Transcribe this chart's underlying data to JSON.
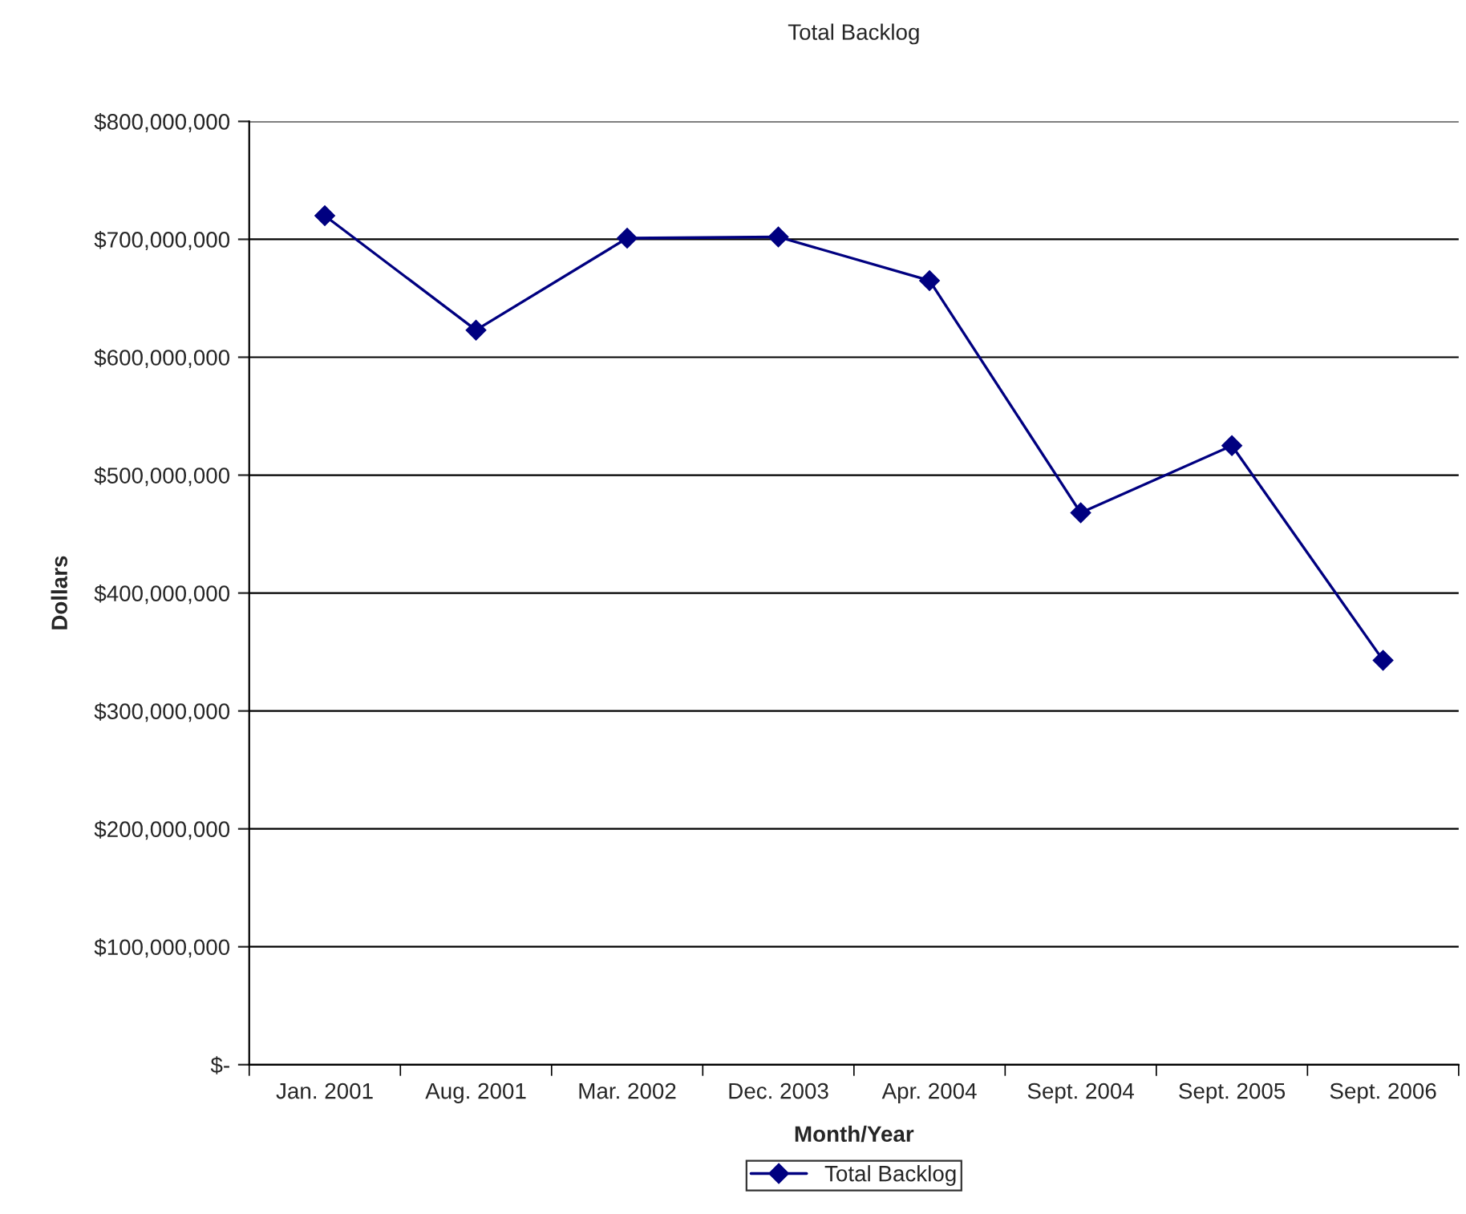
{
  "chart_data": {
    "type": "line",
    "title": "Total Backlog",
    "xlabel": "Month/Year",
    "ylabel": "Dollars",
    "categories": [
      "Jan. 2001",
      "Aug. 2001",
      "Mar. 2002",
      "Dec. 2003",
      "Apr. 2004",
      "Sept. 2004",
      "Sept. 2005",
      "Sept. 2006"
    ],
    "series": [
      {
        "name": "Total Backlog",
        "color": "#000080",
        "values": [
          720000000,
          623000000,
          701000000,
          702000000,
          665000000,
          468000000,
          525000000,
          343000000
        ]
      }
    ],
    "ylim": [
      0,
      800000000
    ],
    "yticks": [
      {
        "value": 0,
        "label": "$-"
      },
      {
        "value": 100000000,
        "label": "$100,000,000"
      },
      {
        "value": 200000000,
        "label": "$200,000,000"
      },
      {
        "value": 300000000,
        "label": "$300,000,000"
      },
      {
        "value": 400000000,
        "label": "$400,000,000"
      },
      {
        "value": 500000000,
        "label": "$500,000,000"
      },
      {
        "value": 600000000,
        "label": "$600,000,000"
      },
      {
        "value": 700000000,
        "label": "$700,000,000"
      },
      {
        "value": 800000000,
        "label": "$800,000,000"
      }
    ],
    "grid": "y",
    "legend": "bottom",
    "marker": "diamond",
    "line_style": "solid"
  }
}
